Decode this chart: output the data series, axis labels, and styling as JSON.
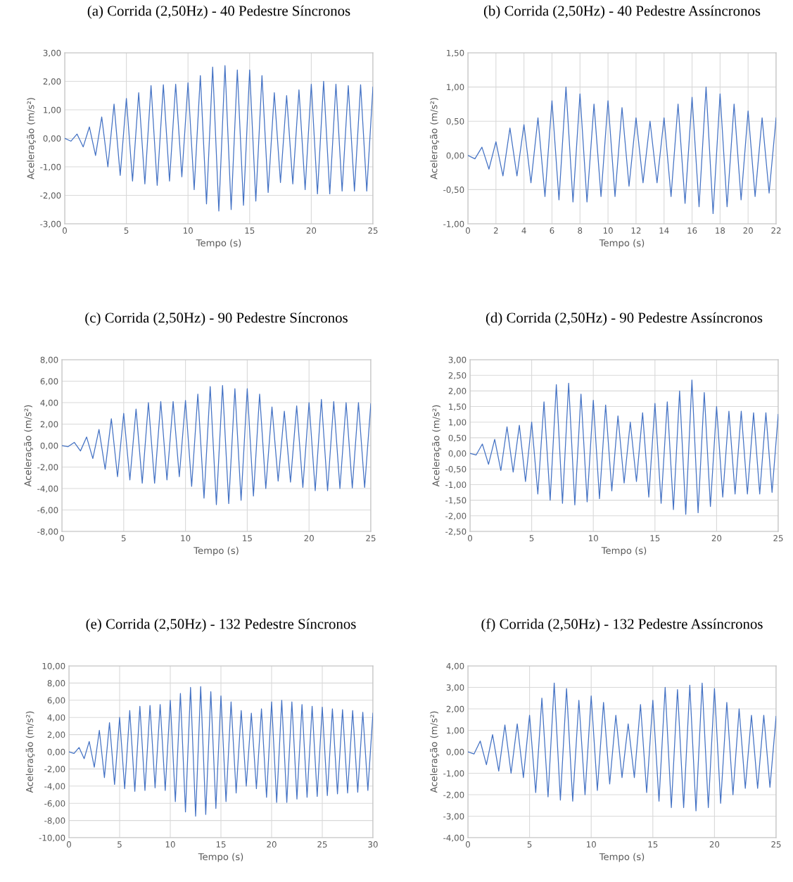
{
  "chart_data": [
    {
      "type": "line",
      "title": "(a) Corrida (2,50Hz) - 40 Pedestre Síncronos",
      "xlabel": "Tempo (s)",
      "ylabel": "Aceleração (m/s²)",
      "grid": true,
      "marker": "none",
      "line_style": "solid",
      "xlim": [
        0,
        25
      ],
      "xticks": [
        0,
        5,
        10,
        15,
        20,
        25
      ],
      "ylim": [
        -3,
        3
      ],
      "yticks": [
        {
          "value": -3,
          "label": "-3,00"
        },
        {
          "value": -2,
          "label": "-2,00"
        },
        {
          "value": -1,
          "label": "-1,00"
        },
        {
          "value": 0,
          "label": "0,00"
        },
        {
          "value": 1,
          "label": "1,00"
        },
        {
          "value": 2,
          "label": "2,00"
        },
        {
          "value": 3,
          "label": "3,00"
        }
      ],
      "series": [
        {
          "color": "#4472c4",
          "x": [
            0,
            0.5,
            1,
            1.5,
            2,
            2.5,
            3,
            3.5,
            4,
            4.5,
            5,
            5.5,
            6,
            6.5,
            7,
            7.5,
            8,
            8.5,
            9,
            9.5,
            10,
            10.5,
            11,
            11.5,
            12,
            12.5,
            13,
            13.5,
            14,
            14.5,
            15,
            15.5,
            16,
            16.5,
            17,
            17.5,
            18,
            18.5,
            19,
            19.5,
            20,
            20.5,
            21,
            21.5,
            22,
            22.5,
            23,
            23.5,
            24,
            24.5,
            25
          ],
          "values": [
            0,
            -0.1,
            0.15,
            -0.3,
            0.4,
            -0.6,
            0.75,
            -1.0,
            1.2,
            -1.3,
            1.4,
            -1.5,
            1.6,
            -1.6,
            1.85,
            -1.65,
            1.88,
            -1.5,
            1.9,
            -1.35,
            1.95,
            -1.8,
            2.2,
            -2.3,
            2.5,
            -2.55,
            2.55,
            -2.5,
            2.4,
            -2.35,
            2.4,
            -2.2,
            2.2,
            -1.9,
            1.6,
            -1.55,
            1.5,
            -1.6,
            1.7,
            -1.8,
            1.9,
            -1.95,
            2.0,
            -1.95,
            1.9,
            -1.85,
            1.85,
            -1.85,
            1.88,
            -1.85,
            1.8
          ]
        }
      ]
    },
    {
      "type": "line",
      "title": "(b) Corrida (2,50Hz) - 40 Pedestre Assíncronos",
      "xlabel": "Tempo (s)",
      "ylabel": "Aceleração (m/s²)",
      "grid": true,
      "marker": "none",
      "line_style": "solid",
      "xlim": [
        0,
        22
      ],
      "xticks": [
        0,
        2,
        4,
        6,
        8,
        10,
        12,
        14,
        16,
        18,
        20,
        22
      ],
      "ylim": [
        -1,
        1.5
      ],
      "yticks": [
        {
          "value": -1,
          "label": "-1,00"
        },
        {
          "value": -0.5,
          "label": "-0,50"
        },
        {
          "value": 0,
          "label": "0,00"
        },
        {
          "value": 0.5,
          "label": "0,50"
        },
        {
          "value": 1,
          "label": "1,00"
        },
        {
          "value": 1.5,
          "label": "1,50"
        }
      ],
      "series": [
        {
          "color": "#4472c4",
          "x": [
            0,
            0.5,
            1,
            1.5,
            2,
            2.5,
            3,
            3.5,
            4,
            4.5,
            5,
            5.5,
            6,
            6.5,
            7,
            7.5,
            8,
            8.5,
            9,
            9.5,
            10,
            10.5,
            11,
            11.5,
            12,
            12.5,
            13,
            13.5,
            14,
            14.5,
            15,
            15.5,
            16,
            16.5,
            17,
            17.5,
            18,
            18.5,
            19,
            19.5,
            20,
            20.5,
            21,
            21.5,
            22
          ],
          "values": [
            0,
            -0.05,
            0.12,
            -0.2,
            0.2,
            -0.3,
            0.4,
            -0.3,
            0.45,
            -0.4,
            0.55,
            -0.6,
            0.8,
            -0.65,
            1.0,
            -0.68,
            0.9,
            -0.68,
            0.75,
            -0.6,
            0.8,
            -0.6,
            0.7,
            -0.45,
            0.55,
            -0.4,
            0.5,
            -0.4,
            0.55,
            -0.6,
            0.75,
            -0.7,
            0.85,
            -0.75,
            1.0,
            -0.85,
            0.9,
            -0.75,
            0.75,
            -0.65,
            0.65,
            -0.6,
            0.55,
            -0.55,
            0.55
          ]
        }
      ]
    },
    {
      "type": "line",
      "title": "(c) Corrida (2,50Hz) - 90 Pedestre Síncronos",
      "xlabel": "Tempo (s)",
      "ylabel": "Aceleração (m/s²)",
      "grid": true,
      "marker": "none",
      "line_style": "solid",
      "xlim": [
        0,
        25
      ],
      "xticks": [
        0,
        5,
        10,
        15,
        20,
        25
      ],
      "ylim": [
        -8,
        8
      ],
      "yticks": [
        {
          "value": -8,
          "label": "-8,00"
        },
        {
          "value": -6,
          "label": "-6,00"
        },
        {
          "value": -4,
          "label": "-4,00"
        },
        {
          "value": -2,
          "label": "-2,00"
        },
        {
          "value": 0,
          "label": "0,00"
        },
        {
          "value": 2,
          "label": "2,00"
        },
        {
          "value": 4,
          "label": "4,00"
        },
        {
          "value": 6,
          "label": "6,00"
        },
        {
          "value": 8,
          "label": "8,00"
        }
      ],
      "series": [
        {
          "color": "#4472c4",
          "x": [
            0,
            0.5,
            1,
            1.5,
            2,
            2.5,
            3,
            3.5,
            4,
            4.5,
            5,
            5.5,
            6,
            6.5,
            7,
            7.5,
            8,
            8.5,
            9,
            9.5,
            10,
            10.5,
            11,
            11.5,
            12,
            12.5,
            13,
            13.5,
            14,
            14.5,
            15,
            15.5,
            16,
            16.5,
            17,
            17.5,
            18,
            18.5,
            19,
            19.5,
            20,
            20.5,
            21,
            21.5,
            22,
            22.5,
            23,
            23.5,
            24,
            24.5,
            25
          ],
          "values": [
            0,
            -0.1,
            0.3,
            -0.5,
            0.8,
            -1.2,
            1.5,
            -2.2,
            2.5,
            -2.9,
            3.0,
            -3.2,
            3.4,
            -3.5,
            4.0,
            -3.5,
            4.1,
            -3.2,
            4.1,
            -2.9,
            4.2,
            -3.8,
            4.8,
            -4.9,
            5.5,
            -5.5,
            5.6,
            -5.4,
            5.3,
            -5.1,
            5.3,
            -4.7,
            4.8,
            -4.0,
            3.6,
            -3.3,
            3.2,
            -3.4,
            3.7,
            -3.9,
            4.0,
            -4.2,
            4.3,
            -4.2,
            4.1,
            -4.0,
            4.0,
            -3.95,
            4.0,
            -3.9,
            3.9
          ]
        }
      ]
    },
    {
      "type": "line",
      "title": "(d) Corrida (2,50Hz) - 90 Pedestre Assíncronos",
      "xlabel": "Tempo (s)",
      "ylabel": "Aceleração (m/s²)",
      "grid": true,
      "marker": "none",
      "line_style": "solid",
      "xlim": [
        0,
        25
      ],
      "xticks": [
        0,
        5,
        10,
        15,
        20,
        25
      ],
      "ylim": [
        -2.5,
        3
      ],
      "yticks": [
        {
          "value": -2.5,
          "label": "-2,50"
        },
        {
          "value": -2,
          "label": "-2,00"
        },
        {
          "value": -1.5,
          "label": "-1,50"
        },
        {
          "value": -1,
          "label": "-1,00"
        },
        {
          "value": -0.5,
          "label": "-0,50"
        },
        {
          "value": 0,
          "label": "0,00"
        },
        {
          "value": 0.5,
          "label": "0,50"
        },
        {
          "value": 1,
          "label": "1,00"
        },
        {
          "value": 1.5,
          "label": "1,50"
        },
        {
          "value": 2,
          "label": "2,00"
        },
        {
          "value": 2.5,
          "label": "2,50"
        },
        {
          "value": 3,
          "label": "3,00"
        }
      ],
      "series": [
        {
          "color": "#4472c4",
          "x": [
            0,
            0.5,
            1,
            1.5,
            2,
            2.5,
            3,
            3.5,
            4,
            4.5,
            5,
            5.5,
            6,
            6.5,
            7,
            7.5,
            8,
            8.5,
            9,
            9.5,
            10,
            10.5,
            11,
            11.5,
            12,
            12.5,
            13,
            13.5,
            14,
            14.5,
            15,
            15.5,
            16,
            16.5,
            17,
            17.5,
            18,
            18.5,
            19,
            19.5,
            20,
            20.5,
            21,
            21.5,
            22,
            22.5,
            23,
            23.5,
            24,
            24.5,
            25
          ],
          "values": [
            0,
            -0.05,
            0.3,
            -0.35,
            0.45,
            -0.55,
            0.85,
            -0.6,
            0.9,
            -0.9,
            1.0,
            -1.3,
            1.65,
            -1.5,
            2.2,
            -1.6,
            2.25,
            -1.65,
            1.9,
            -1.55,
            1.7,
            -1.45,
            1.55,
            -1.2,
            1.2,
            -0.95,
            1.0,
            -0.9,
            1.3,
            -1.4,
            1.6,
            -1.6,
            1.65,
            -1.8,
            2.0,
            -1.95,
            2.35,
            -1.9,
            1.95,
            -1.7,
            1.5,
            -1.4,
            1.35,
            -1.3,
            1.35,
            -1.3,
            1.3,
            -1.3,
            1.3,
            -1.25,
            1.25
          ]
        }
      ]
    },
    {
      "type": "line",
      "title": "(e) Corrida (2,50Hz) - 132 Pedestre Síncronos",
      "xlabel": "Tempo (s)",
      "ylabel": "Aceleração (m/s²)",
      "grid": true,
      "marker": "none",
      "line_style": "solid",
      "xlim": [
        0,
        30
      ],
      "xticks": [
        0,
        5,
        10,
        15,
        20,
        25,
        30
      ],
      "ylim": [
        -10,
        10
      ],
      "yticks": [
        {
          "value": -10,
          "label": "-10,00"
        },
        {
          "value": -8,
          "label": "-8,00"
        },
        {
          "value": -6,
          "label": "-6,00"
        },
        {
          "value": -4,
          "label": "-4,00"
        },
        {
          "value": -2,
          "label": "-2,00"
        },
        {
          "value": 0,
          "label": "0,00"
        },
        {
          "value": 2,
          "label": "2,00"
        },
        {
          "value": 4,
          "label": "4,00"
        },
        {
          "value": 6,
          "label": "6,00"
        },
        {
          "value": 8,
          "label": "8,00"
        },
        {
          "value": 10,
          "label": "10,00"
        }
      ],
      "series": [
        {
          "color": "#4472c4",
          "x": [
            0,
            0.5,
            1,
            1.5,
            2,
            2.5,
            3,
            3.5,
            4,
            4.5,
            5,
            5.5,
            6,
            6.5,
            7,
            7.5,
            8,
            8.5,
            9,
            9.5,
            10,
            10.5,
            11,
            11.5,
            12,
            12.5,
            13,
            13.5,
            14,
            14.5,
            15,
            15.5,
            16,
            16.5,
            17,
            17.5,
            18,
            18.5,
            19,
            19.5,
            20,
            20.5,
            21,
            21.5,
            22,
            22.5,
            23,
            23.5,
            24,
            24.5,
            25,
            25.5,
            26,
            26.5,
            27,
            27.5,
            28,
            28.5,
            29,
            29.5,
            30
          ],
          "values": [
            0,
            -0.2,
            0.5,
            -0.8,
            1.2,
            -1.8,
            2.5,
            -3.0,
            3.4,
            -3.8,
            4.0,
            -4.3,
            4.8,
            -4.6,
            5.3,
            -4.5,
            5.4,
            -4.2,
            5.5,
            -4.5,
            6.0,
            -5.8,
            6.8,
            -7.0,
            7.5,
            -7.5,
            7.6,
            -7.3,
            7.0,
            -6.6,
            6.5,
            -5.8,
            5.8,
            -4.8,
            4.8,
            -4.0,
            4.5,
            -4.3,
            5.0,
            -5.3,
            5.8,
            -5.9,
            6.0,
            -5.9,
            5.8,
            -5.5,
            5.5,
            -5.3,
            5.3,
            -5.2,
            5.2,
            -5.1,
            5.0,
            -4.9,
            4.9,
            -4.8,
            4.8,
            -4.7,
            4.6,
            -4.5,
            4.5
          ]
        }
      ]
    },
    {
      "type": "line",
      "title": "(f) Corrida (2,50Hz) - 132 Pedestre Assíncronos",
      "xlabel": "Tempo (s)",
      "ylabel": "Aceleração (m/s²)",
      "grid": true,
      "marker": "none",
      "line_style": "solid",
      "xlim": [
        0,
        25
      ],
      "xticks": [
        0,
        5,
        10,
        15,
        20,
        25
      ],
      "ylim": [
        -4,
        4
      ],
      "yticks": [
        {
          "value": -4,
          "label": "-4,00"
        },
        {
          "value": -3,
          "label": "-3,00"
        },
        {
          "value": -2,
          "label": "-2,00"
        },
        {
          "value": -1,
          "label": "-1,00"
        },
        {
          "value": 0,
          "label": "0,00"
        },
        {
          "value": 1,
          "label": "1,00"
        },
        {
          "value": 2,
          "label": "2,00"
        },
        {
          "value": 3,
          "label": "3,00"
        },
        {
          "value": 4,
          "label": "4,00"
        }
      ],
      "series": [
        {
          "color": "#4472c4",
          "x": [
            0,
            0.5,
            1,
            1.5,
            2,
            2.5,
            3,
            3.5,
            4,
            4.5,
            5,
            5.5,
            6,
            6.5,
            7,
            7.5,
            8,
            8.5,
            9,
            9.5,
            10,
            10.5,
            11,
            11.5,
            12,
            12.5,
            13,
            13.5,
            14,
            14.5,
            15,
            15.5,
            16,
            16.5,
            17,
            17.5,
            18,
            18.5,
            19,
            19.5,
            20,
            20.5,
            21,
            21.5,
            22,
            22.5,
            23,
            23.5,
            24,
            24.5,
            25
          ],
          "values": [
            0,
            -0.1,
            0.5,
            -0.6,
            0.8,
            -0.9,
            1.25,
            -1.0,
            1.3,
            -1.2,
            1.7,
            -1.9,
            2.5,
            -2.1,
            3.2,
            -2.25,
            2.95,
            -2.3,
            2.4,
            -2.0,
            2.6,
            -1.8,
            2.3,
            -1.5,
            1.7,
            -1.2,
            1.3,
            -1.2,
            2.2,
            -1.9,
            2.4,
            -2.3,
            3.0,
            -2.6,
            2.9,
            -2.6,
            3.1,
            -2.75,
            3.2,
            -2.6,
            2.95,
            -2.4,
            2.3,
            -2.0,
            2.0,
            -1.7,
            1.7,
            -1.7,
            1.7,
            -1.65,
            1.65
          ]
        }
      ]
    }
  ]
}
